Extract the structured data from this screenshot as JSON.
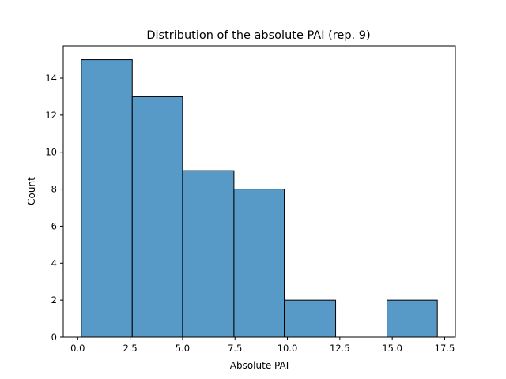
{
  "chart_data": {
    "type": "bar",
    "title": "Distribution of the absolute PAI (rep. 9)",
    "xlabel": "Absolute PAI",
    "ylabel": "Count",
    "bins": [
      {
        "start": 0.17,
        "end": 2.6,
        "count": 15
      },
      {
        "start": 2.6,
        "end": 5.0,
        "count": 13
      },
      {
        "start": 5.0,
        "end": 7.45,
        "count": 9
      },
      {
        "start": 7.45,
        "end": 9.85,
        "count": 8
      },
      {
        "start": 9.85,
        "end": 12.3,
        "count": 2
      },
      {
        "start": 12.3,
        "end": 14.75,
        "count": 0
      },
      {
        "start": 14.75,
        "end": 17.15,
        "count": 2
      }
    ],
    "xlim": [
      -0.69,
      18.01
    ],
    "ylim": [
      0,
      15.75
    ],
    "xticks": [
      {
        "value": 0.0,
        "label": "0.0"
      },
      {
        "value": 2.5,
        "label": "2.5"
      },
      {
        "value": 5.0,
        "label": "5.0"
      },
      {
        "value": 7.5,
        "label": "7.5"
      },
      {
        "value": 10.0,
        "label": "10.0"
      },
      {
        "value": 12.5,
        "label": "12.5"
      },
      {
        "value": 15.0,
        "label": "15.0"
      },
      {
        "value": 17.5,
        "label": "17.5"
      }
    ],
    "yticks": [
      {
        "value": 0,
        "label": "0"
      },
      {
        "value": 2,
        "label": "2"
      },
      {
        "value": 4,
        "label": "4"
      },
      {
        "value": 6,
        "label": "6"
      },
      {
        "value": 8,
        "label": "8"
      },
      {
        "value": 10,
        "label": "10"
      },
      {
        "value": 12,
        "label": "12"
      },
      {
        "value": 14,
        "label": "14"
      }
    ],
    "grid": false,
    "legend": "none",
    "bar_color": "#5799c7",
    "edge_color": "#000000"
  }
}
